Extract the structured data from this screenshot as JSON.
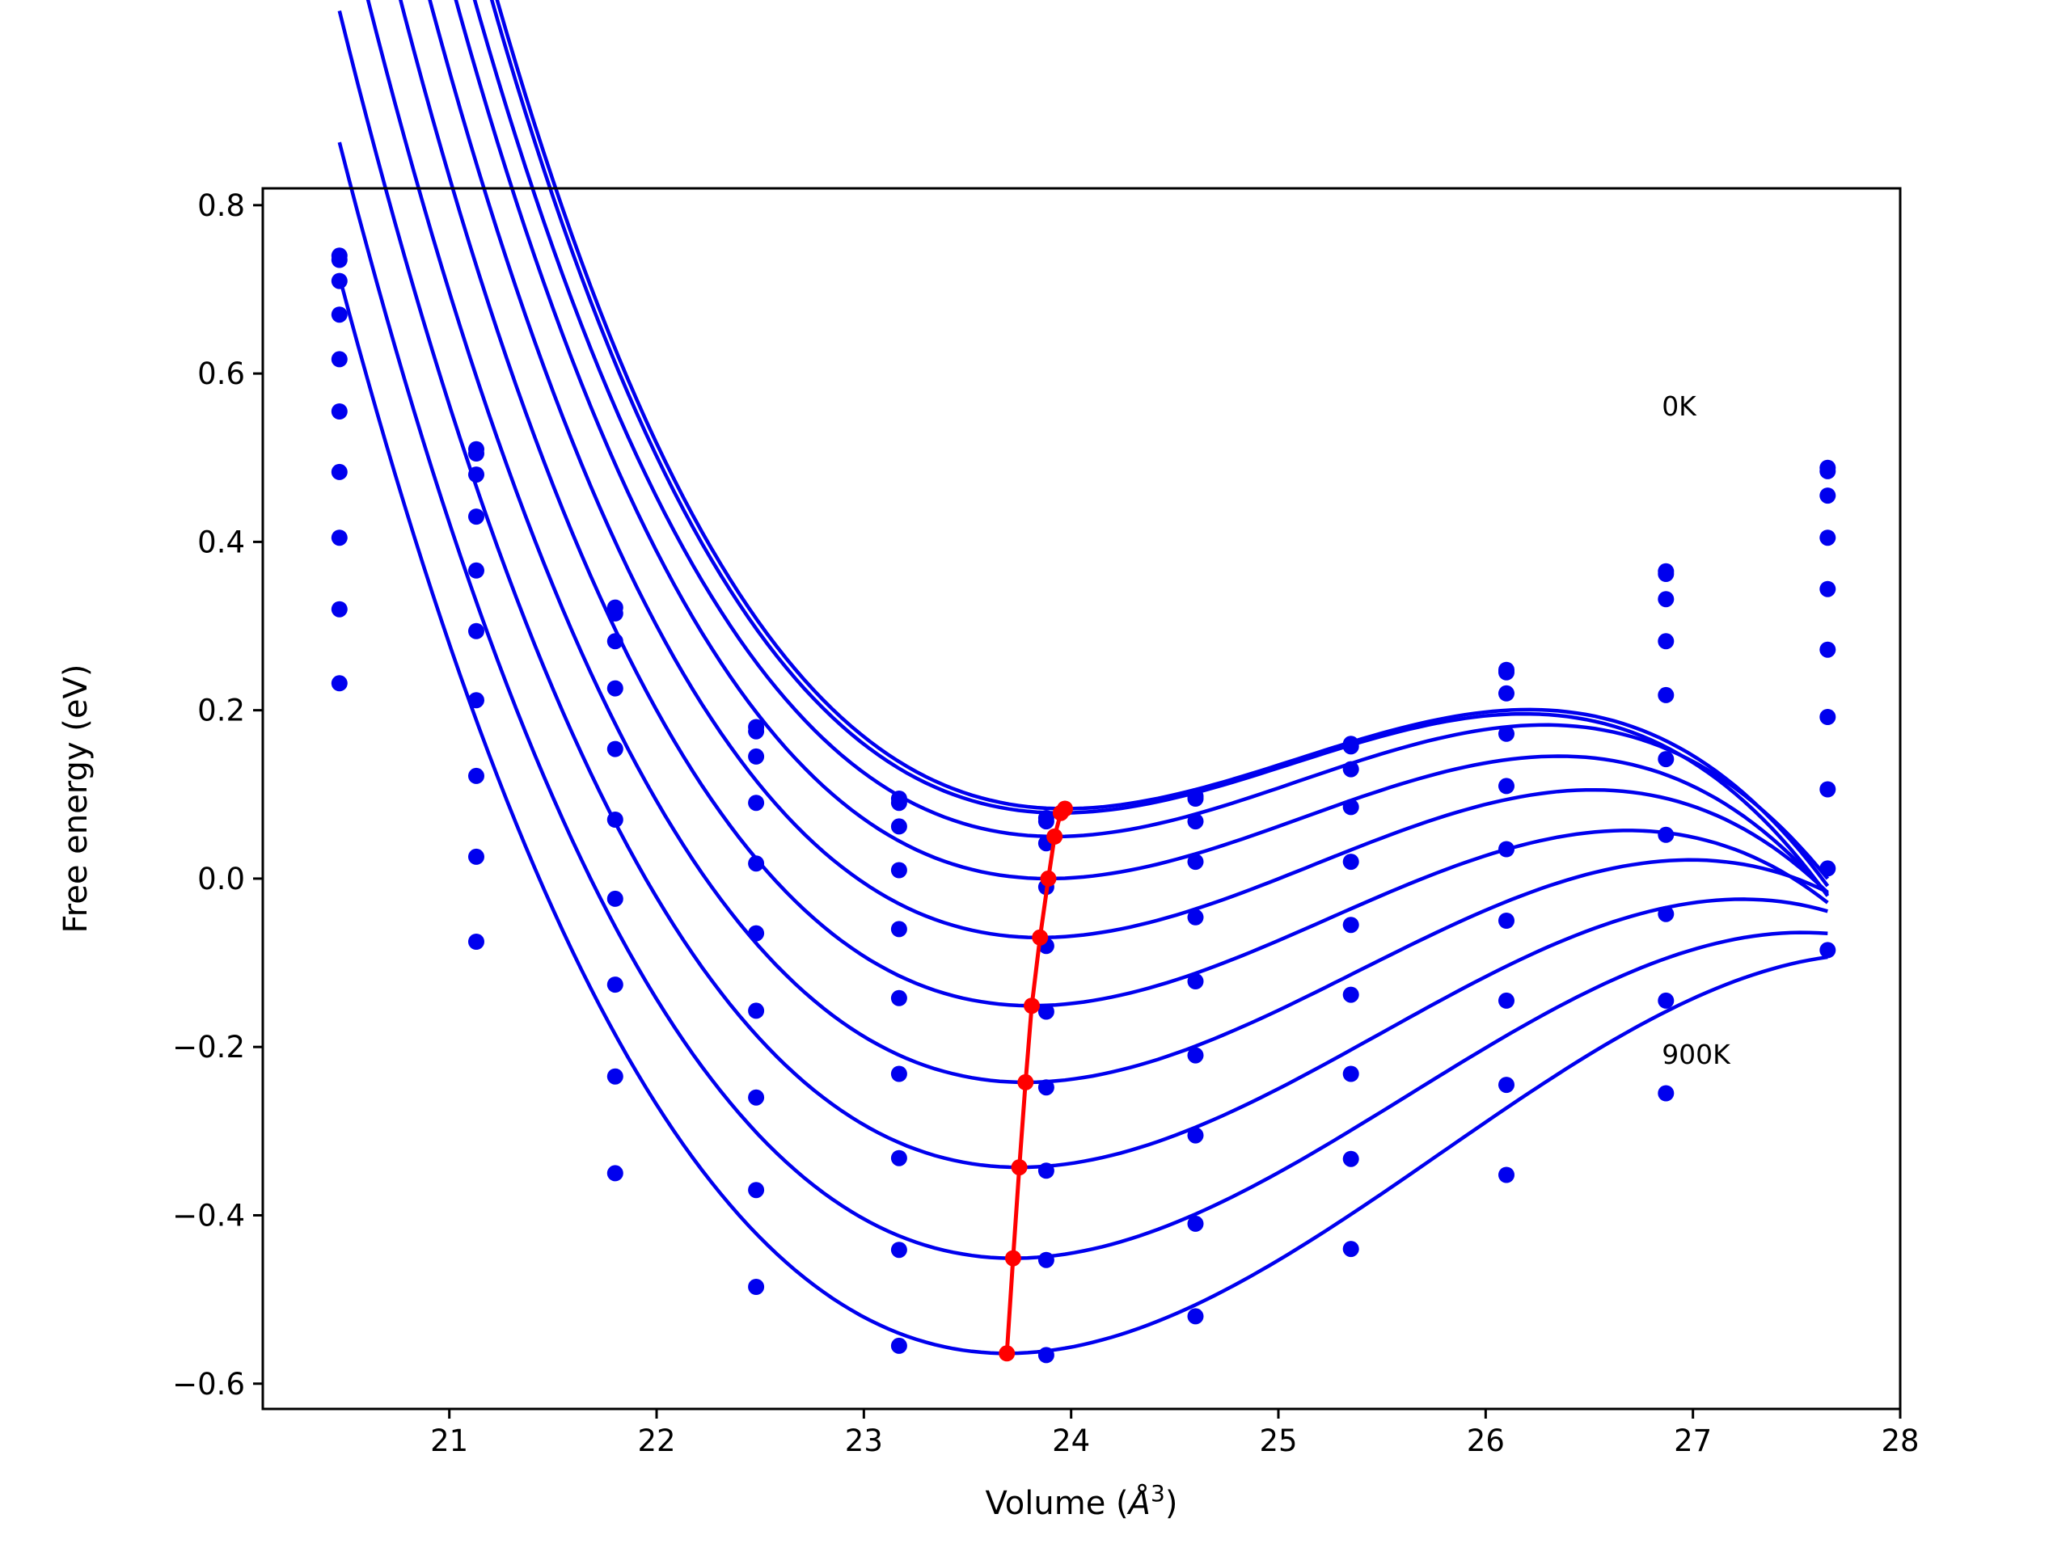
{
  "chart_data": {
    "type": "scatter",
    "xlabel_prefix": "Volume (",
    "xlabel_unit": "Å",
    "xlabel_exp": "3",
    "xlabel_suffix": ")",
    "ylabel": "Free energy (eV)",
    "xlim": [
      20.1,
      28.0
    ],
    "ylim": [
      -0.63,
      0.82
    ],
    "xticks": [
      21,
      22,
      23,
      24,
      25,
      26,
      27,
      28
    ],
    "yticks": [
      -0.6,
      -0.4,
      -0.2,
      0.0,
      0.2,
      0.4,
      0.6,
      0.8
    ],
    "ytick_labels": [
      "−0.6",
      "−0.4",
      "−0.2",
      "0.0",
      "0.2",
      "0.4",
      "0.6",
      "0.8"
    ],
    "xtick_labels": [
      "21",
      "22",
      "23",
      "24",
      "25",
      "26",
      "27",
      "28"
    ],
    "annotations": [
      {
        "text": "0K",
        "x": 26.85,
        "y": 0.55
      },
      {
        "text": "900K",
        "x": 26.85,
        "y": -0.22
      }
    ],
    "volumes": [
      20.47,
      21.13,
      21.8,
      22.48,
      23.17,
      23.88,
      24.6,
      25.35,
      26.1,
      26.87,
      27.65
    ],
    "series": [
      {
        "fit": {
          "e0": 0.083,
          "v0": 23.97,
          "a": 0.0705,
          "b": 0.021
        },
        "points": [
          0.74,
          0.51,
          0.322,
          0.18,
          0.095,
          0.072,
          0.098,
          0.16,
          0.248,
          0.365,
          0.488
        ]
      },
      {
        "fit": {
          "e0": 0.078,
          "v0": 23.95,
          "a": 0.0705,
          "b": 0.021
        },
        "points": [
          0.735,
          0.505,
          0.315,
          0.175,
          0.09,
          0.068,
          0.095,
          0.157,
          0.245,
          0.362,
          0.484
        ]
      },
      {
        "fit": {
          "e0": 0.05,
          "v0": 23.92,
          "a": 0.071,
          "b": 0.02
        },
        "points": [
          0.71,
          0.48,
          0.282,
          0.145,
          0.062,
          0.042,
          0.068,
          0.13,
          0.22,
          0.332,
          0.455
        ]
      },
      {
        "fit": {
          "e0": 0.0,
          "v0": 23.89,
          "a": 0.072,
          "b": 0.0195
        },
        "points": [
          0.67,
          0.43,
          0.226,
          0.09,
          0.01,
          -0.01,
          0.02,
          0.085,
          0.172,
          0.282,
          0.405
        ]
      },
      {
        "fit": {
          "e0": -0.07,
          "v0": 23.85,
          "a": 0.074,
          "b": 0.0185
        },
        "points": [
          0.617,
          0.366,
          0.154,
          0.018,
          -0.06,
          -0.08,
          -0.046,
          0.02,
          0.11,
          0.218,
          0.344
        ]
      },
      {
        "fit": {
          "e0": -0.151,
          "v0": 23.81,
          "a": 0.0755,
          "b": 0.0175
        },
        "points": [
          0.555,
          0.294,
          0.07,
          -0.065,
          -0.142,
          -0.158,
          -0.122,
          -0.055,
          0.035,
          0.142,
          0.272
        ]
      },
      {
        "fit": {
          "e0": -0.242,
          "v0": 23.78,
          "a": 0.077,
          "b": 0.016
        },
        "points": [
          0.483,
          0.212,
          -0.024,
          -0.157,
          -0.232,
          -0.248,
          -0.21,
          -0.138,
          -0.05,
          0.052,
          0.192
        ]
      },
      {
        "fit": {
          "e0": -0.343,
          "v0": 23.75,
          "a": 0.0785,
          "b": 0.015
        },
        "points": [
          0.405,
          0.122,
          -0.126,
          -0.26,
          -0.332,
          -0.347,
          -0.305,
          -0.232,
          -0.145,
          -0.042,
          0.106
        ]
      },
      {
        "fit": {
          "e0": -0.451,
          "v0": 23.72,
          "a": 0.08,
          "b": 0.014
        },
        "points": [
          0.32,
          0.026,
          -0.235,
          -0.37,
          -0.441,
          -0.453,
          -0.41,
          -0.333,
          -0.245,
          -0.145,
          0.012
        ]
      },
      {
        "fit": {
          "e0": -0.564,
          "v0": 23.69,
          "a": 0.0815,
          "b": 0.013
        },
        "points": [
          0.232,
          -0.075,
          -0.35,
          -0.485,
          -0.555,
          -0.566,
          -0.52,
          -0.44,
          -0.352,
          -0.255,
          -0.085
        ]
      }
    ],
    "minima_line": {
      "x": [
        23.97,
        23.95,
        23.92,
        23.89,
        23.85,
        23.81,
        23.78,
        23.75,
        23.72,
        23.69
      ],
      "y": [
        0.083,
        0.078,
        0.05,
        0.0,
        -0.07,
        -0.151,
        -0.242,
        -0.343,
        -0.451,
        -0.564
      ]
    },
    "colors": {
      "fit": "#0000ee",
      "points": "#0000ee",
      "minima": "#ff0000",
      "axes": "#000000"
    }
  }
}
